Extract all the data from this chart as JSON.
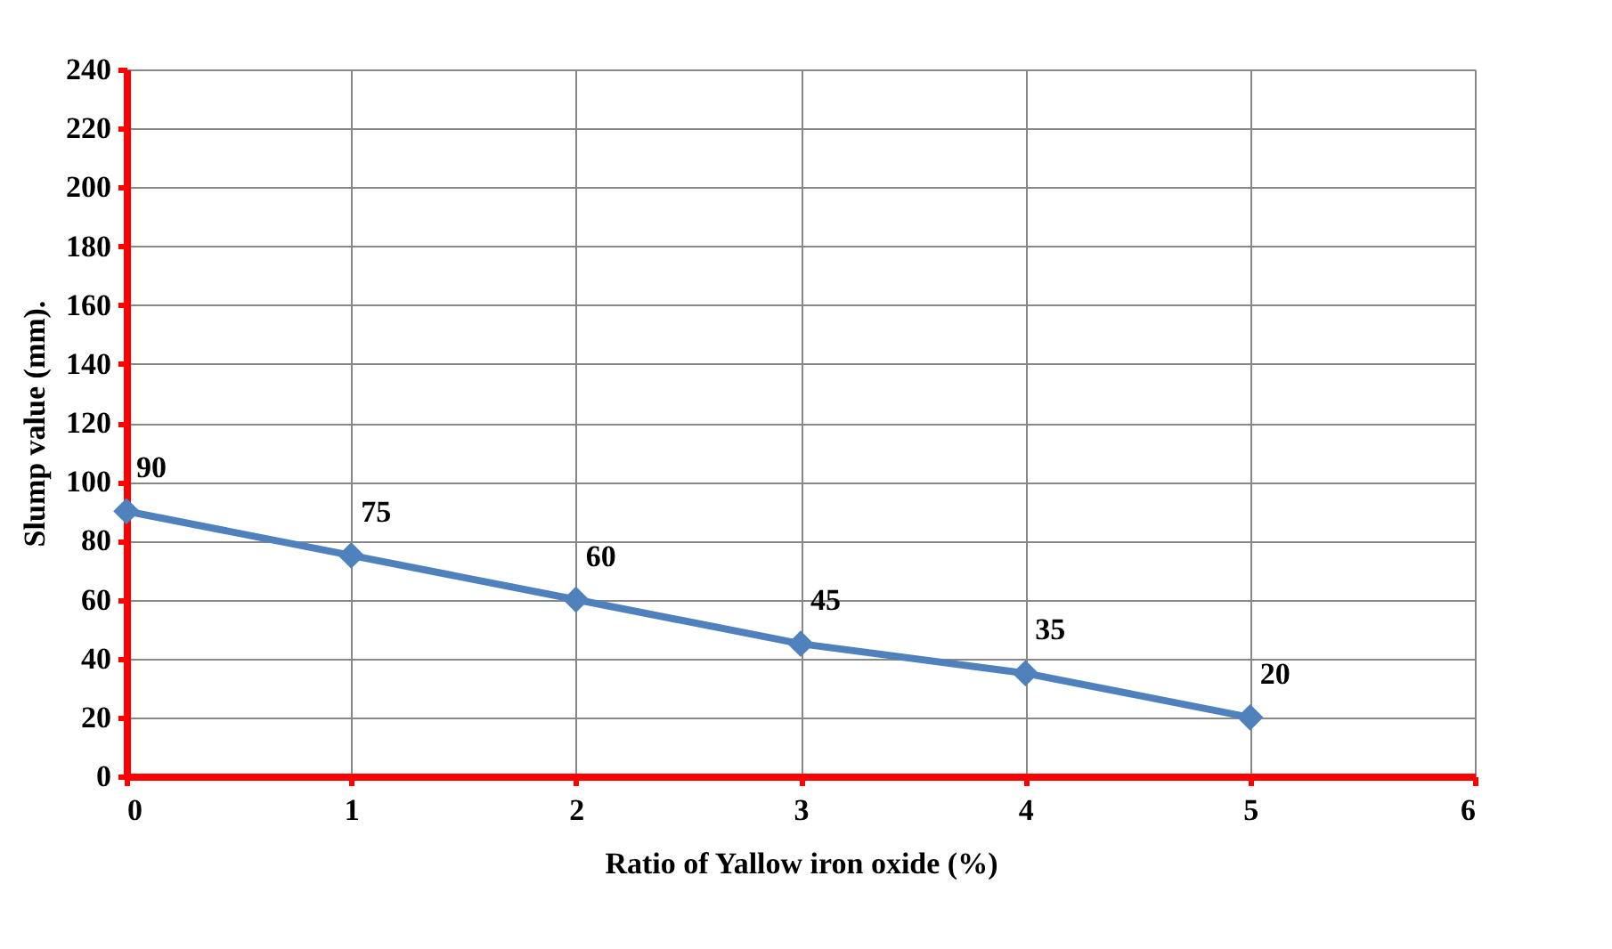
{
  "chart_data": {
    "type": "line",
    "xlabel": "Ratio of Yallow iron oxide  (%)",
    "ylabel": "Slump value (mm).",
    "x": [
      0,
      1,
      2,
      3,
      4,
      5
    ],
    "series": [
      {
        "color": "#4f81bd",
        "values": [
          90,
          75,
          60,
          45,
          35,
          20
        ]
      }
    ],
    "xlim": [
      0,
      6
    ],
    "xticks": [
      0,
      1,
      2,
      3,
      4,
      5,
      6
    ],
    "ylim": [
      0,
      240
    ],
    "yticks": [
      0,
      20,
      40,
      60,
      80,
      100,
      120,
      140,
      160,
      180,
      200,
      220,
      240
    ],
    "grid": true,
    "marker": "diamond",
    "line_style": "solid",
    "data_labels": true
  }
}
